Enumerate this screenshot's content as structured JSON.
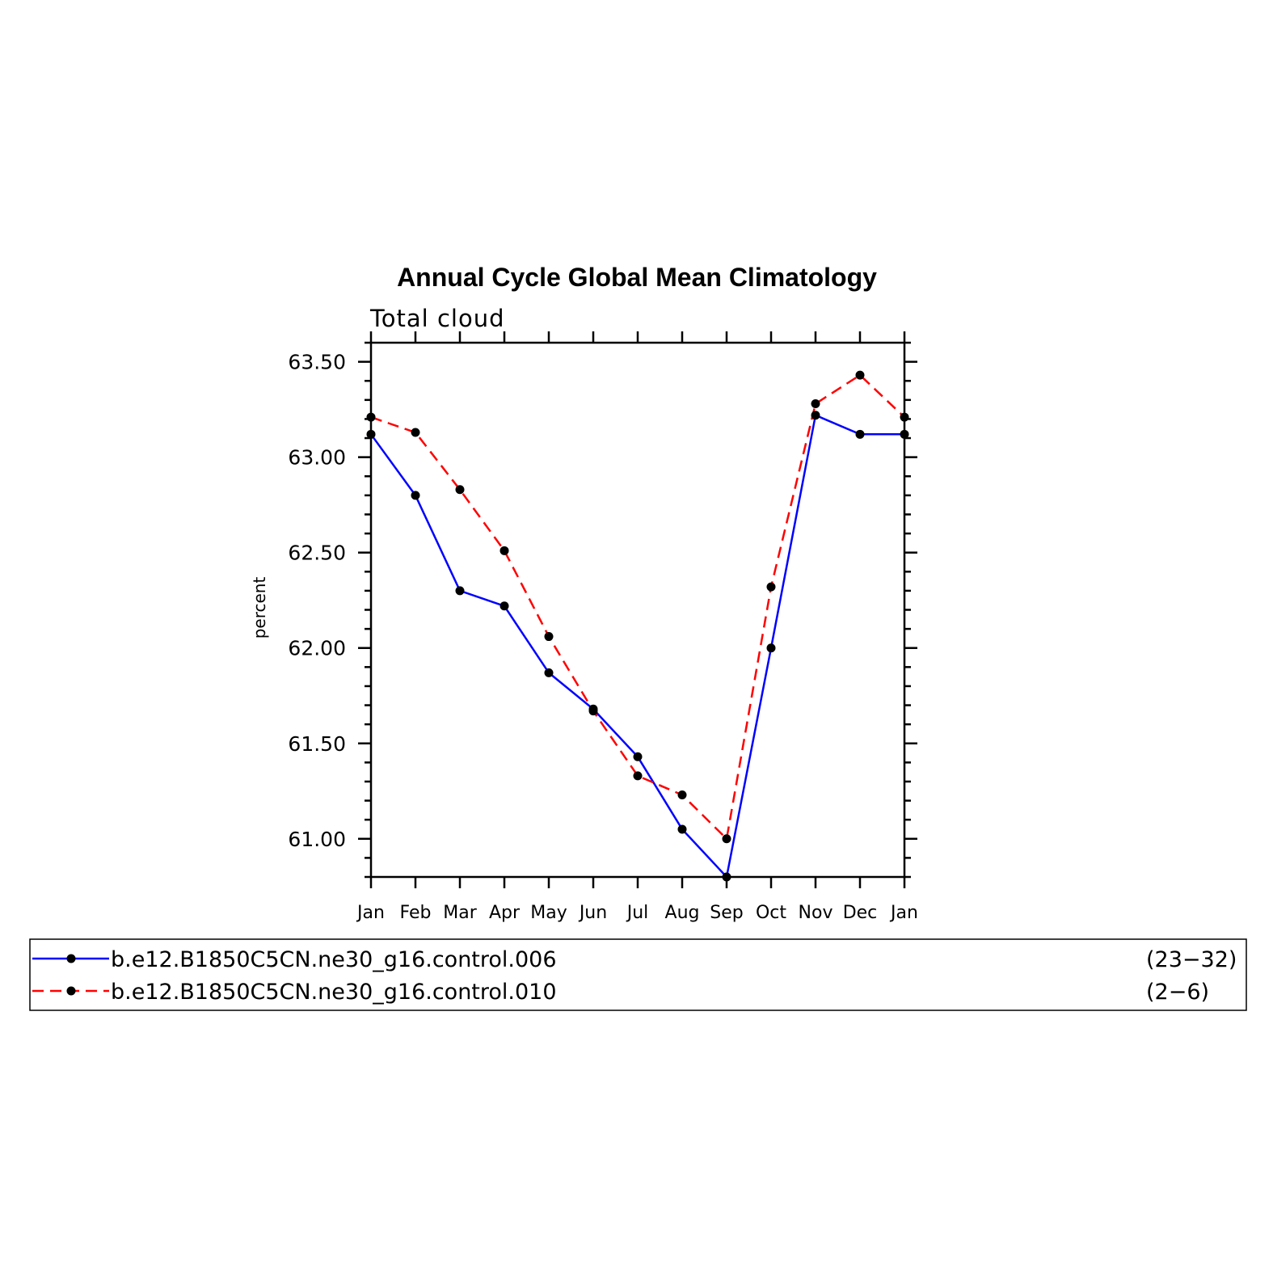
{
  "chart_data": {
    "type": "line",
    "title": "Annual Cycle Global Mean Climatology",
    "subtitle": "Total cloud",
    "xlabel": "",
    "ylabel": "percent",
    "categories": [
      "Jan",
      "Feb",
      "Mar",
      "Apr",
      "May",
      "Jun",
      "Jul",
      "Aug",
      "Sep",
      "Oct",
      "Nov",
      "Dec",
      "Jan"
    ],
    "ylim": [
      60.8,
      63.6
    ],
    "yticks": [
      "63.50",
      "63.00",
      "62.50",
      "62.00",
      "61.50",
      "61.00"
    ],
    "ytick_values": [
      63.5,
      63.0,
      62.5,
      62.0,
      61.5,
      61.0
    ],
    "grid": false,
    "legend_placement": "bottom",
    "series": [
      {
        "name": "b.e12.B1850C5CN.ne30_g16.control.006",
        "range_label": "(23−32)",
        "color": "#0000ff",
        "dash": "solid",
        "values": [
          63.12,
          62.8,
          62.3,
          62.22,
          61.87,
          61.68,
          61.43,
          61.05,
          60.8,
          62.0,
          63.22,
          63.12,
          63.12
        ]
      },
      {
        "name": "b.e12.B1850C5CN.ne30_g16.control.010",
        "range_label": "(2−6)",
        "color": "#ff0000",
        "dash": "dashed",
        "values": [
          63.21,
          63.13,
          62.83,
          62.51,
          62.06,
          61.67,
          61.33,
          61.23,
          61.0,
          62.32,
          63.28,
          63.43,
          63.21
        ]
      }
    ]
  }
}
